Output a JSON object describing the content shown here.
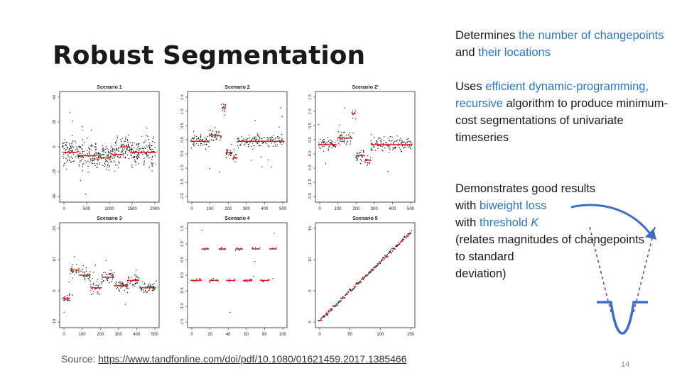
{
  "slide": {
    "title": "Robust Segmentation",
    "page_number": "14"
  },
  "bullets": {
    "b1": {
      "t1": "Determines ",
      "t2": "the number of changepoints",
      "t3": " and ",
      "t4": "their locations"
    },
    "b2": {
      "t1": "Uses ",
      "t2": "efficient dynamic-programming, recursive",
      "t3": " algorithm to produce minimum-cost segmentations of univariate timeseries"
    },
    "b3": {
      "l1": "Demonstrates good results",
      "l2a": "with ",
      "l2b": "biweight loss",
      "l3a": "with ",
      "l3b": "threshold ",
      "l3c": "K",
      "l4": "(relates magnitudes of changepoints",
      "l5": "to standard",
      "l6": "deviation)"
    }
  },
  "source": {
    "label": "Source:",
    "url": "https://www.tandfonline.com/doi/pdf/10.1080/01621459.2017.1385466"
  },
  "colors": {
    "accent": "#2e75b6",
    "segment": "#e0211d",
    "loss_curve": "#3a6fc4",
    "dashed": "#7b3fa0"
  },
  "figures": [
    {
      "title": "Scenario 1",
      "xticks": [
        "0",
        "500",
        "1000",
        "1500",
        "2000"
      ],
      "yticks": [
        "40",
        "20",
        "0",
        "-20",
        "-40"
      ]
    },
    {
      "title": "Scenario 2",
      "xticks": [
        "0",
        "100",
        "200",
        "300",
        "400",
        "500"
      ],
      "yticks": [
        "1.5",
        "1.0",
        "0.5",
        "0.0",
        "-0.5",
        "-1.0",
        "-1.5",
        "-2.0"
      ]
    },
    {
      "title": "Scenario 2'",
      "xticks": [
        "0",
        "100",
        "200",
        "300",
        "400",
        "500"
      ],
      "yticks": [
        "1.5",
        "1.0",
        "0.5",
        "0.0",
        "-0.5",
        "-1.0",
        "-1.5",
        "-2.0"
      ]
    },
    {
      "title": "Scenario 3",
      "xticks": [
        "0",
        "100",
        "200",
        "300",
        "400",
        "500"
      ],
      "yticks": [
        "20",
        "10",
        "0",
        "-10"
      ]
    },
    {
      "title": "Scenario 4",
      "xticks": [
        "0",
        "20",
        "40",
        "60",
        "80",
        "100"
      ],
      "yticks": [
        "1.5",
        "1.0",
        "0.5",
        "0.0",
        "-0.5",
        "-1.0",
        "-1.5"
      ]
    },
    {
      "title": "Scenario 5",
      "xticks": [
        "0",
        "50",
        "100",
        "150"
      ],
      "yticks": [
        "15",
        "10",
        "5",
        "0"
      ]
    }
  ]
}
